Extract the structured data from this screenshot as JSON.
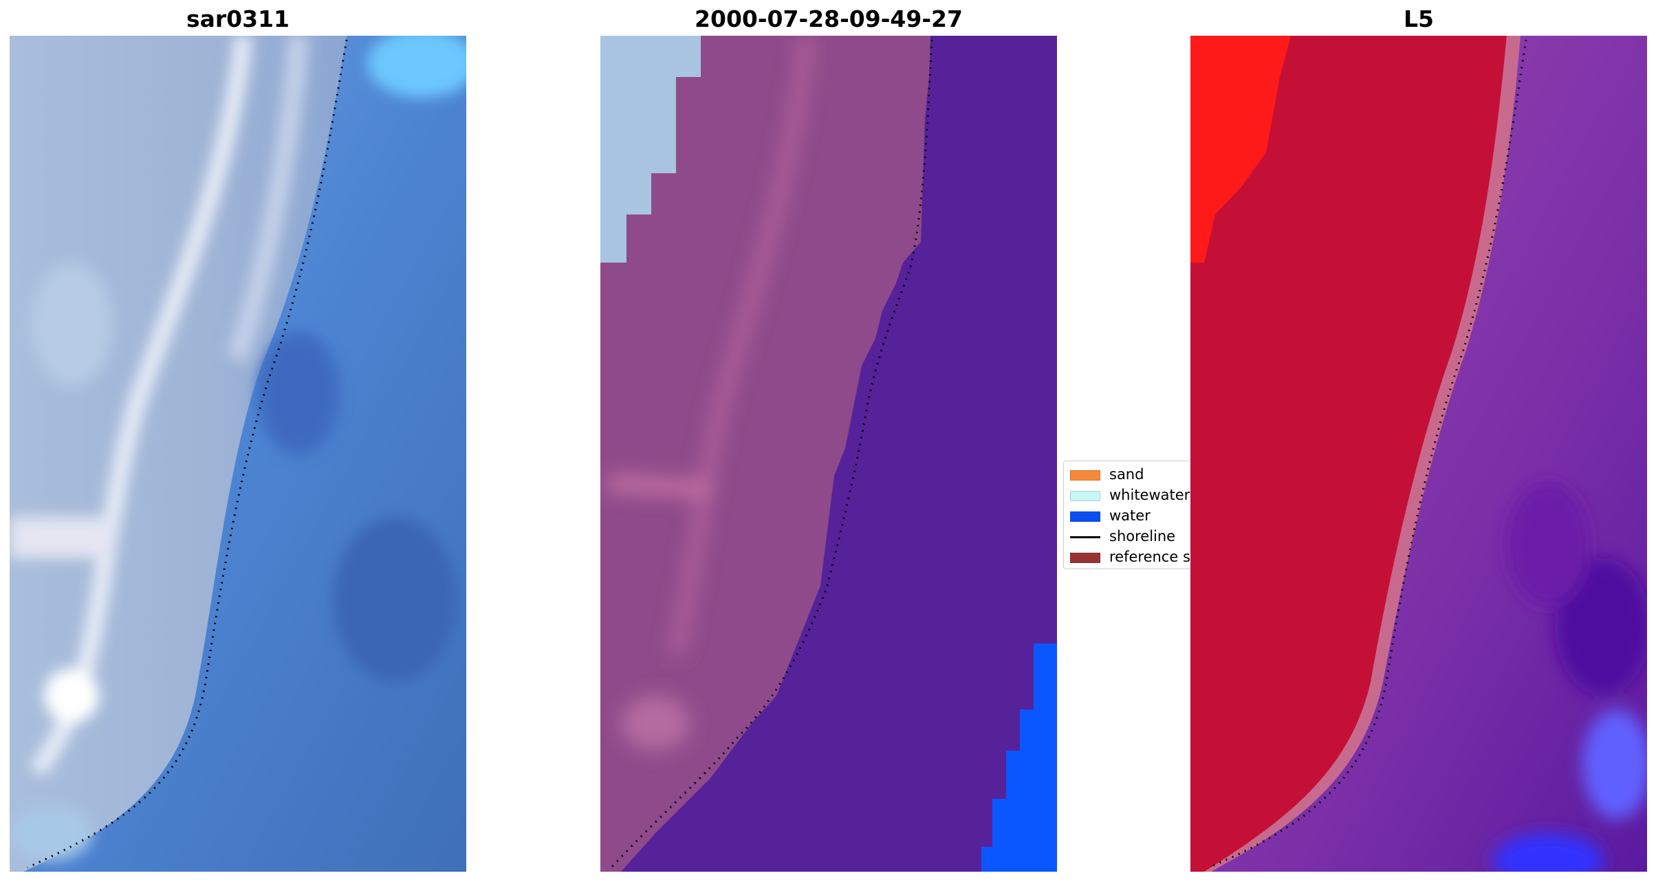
{
  "panels": [
    {
      "title": "sar0311",
      "image": "true-color satellite image",
      "colors": {
        "land": "#9fb6d8",
        "sand_bright": "#e6eaf4",
        "water": "#3f74c4",
        "water_light": "#6fa2e6"
      }
    },
    {
      "title": "2000-07-28-09-49-27",
      "image": "classified image overlay",
      "colors": {
        "land": "#8e4a8a",
        "land_light": "#b0609a",
        "white": "#a8c4e0",
        "water": "#55229a",
        "water_blue": "#0a57ff"
      }
    },
    {
      "title": "L5",
      "image": "water index image",
      "colors": {
        "land": "#c41037",
        "land_bright": "#ff1a1a",
        "transition": "#c86a8e",
        "water": "#8a3ca8",
        "water_dark": "#5a1aa0",
        "water_blue": "#2a2aff"
      }
    }
  ],
  "legend": {
    "items": [
      {
        "label": "sand",
        "color": "#f58a3a",
        "type": "patch"
      },
      {
        "label": "whitewater",
        "color": "#c8f8f6",
        "type": "patch"
      },
      {
        "label": "water",
        "color": "#0a50f0",
        "type": "patch"
      },
      {
        "label": "shoreline",
        "color": "#000000",
        "type": "line"
      },
      {
        "label": "reference s",
        "color": "#993333",
        "type": "patch"
      }
    ]
  }
}
